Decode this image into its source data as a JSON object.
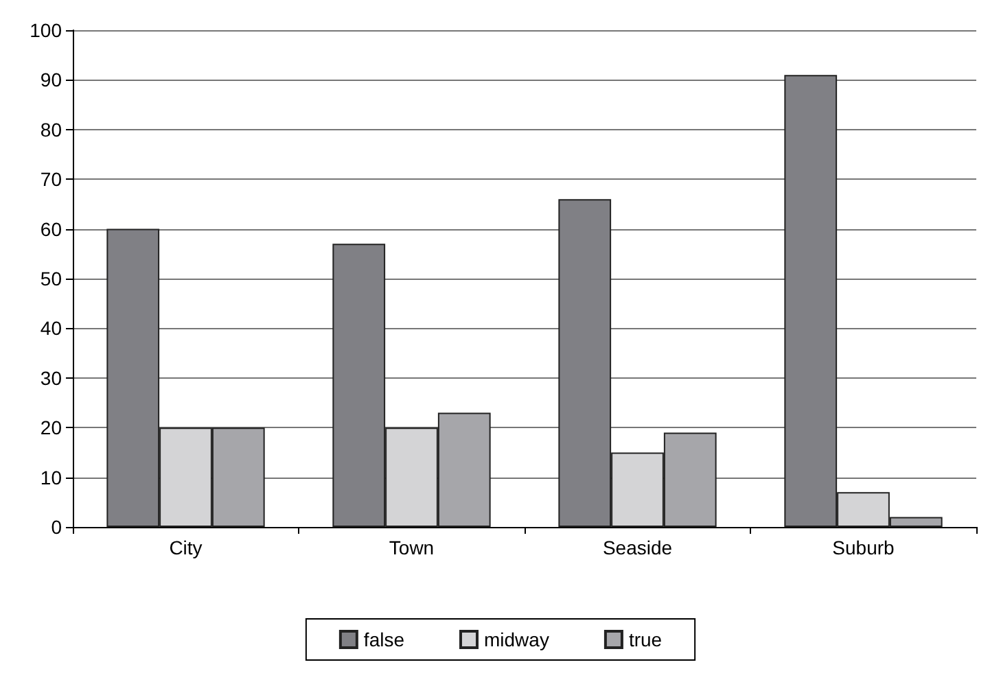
{
  "chart_data": {
    "type": "bar",
    "categories": [
      "City",
      "Town",
      "Seaside",
      "Suburb"
    ],
    "series": [
      {
        "name": "false",
        "color": "#808085",
        "values": [
          60,
          57,
          66,
          91
        ]
      },
      {
        "name": "midway",
        "color": "#d4d4d6",
        "values": [
          20,
          20,
          15,
          7
        ]
      },
      {
        "name": "true",
        "color": "#a6a6aa",
        "values": [
          20,
          23,
          19,
          2
        ]
      }
    ],
    "ylim": [
      0,
      100
    ],
    "yticks": [
      0,
      10,
      20,
      30,
      40,
      50,
      60,
      70,
      80,
      90,
      100
    ],
    "grid": "y",
    "legend": "bottom"
  }
}
